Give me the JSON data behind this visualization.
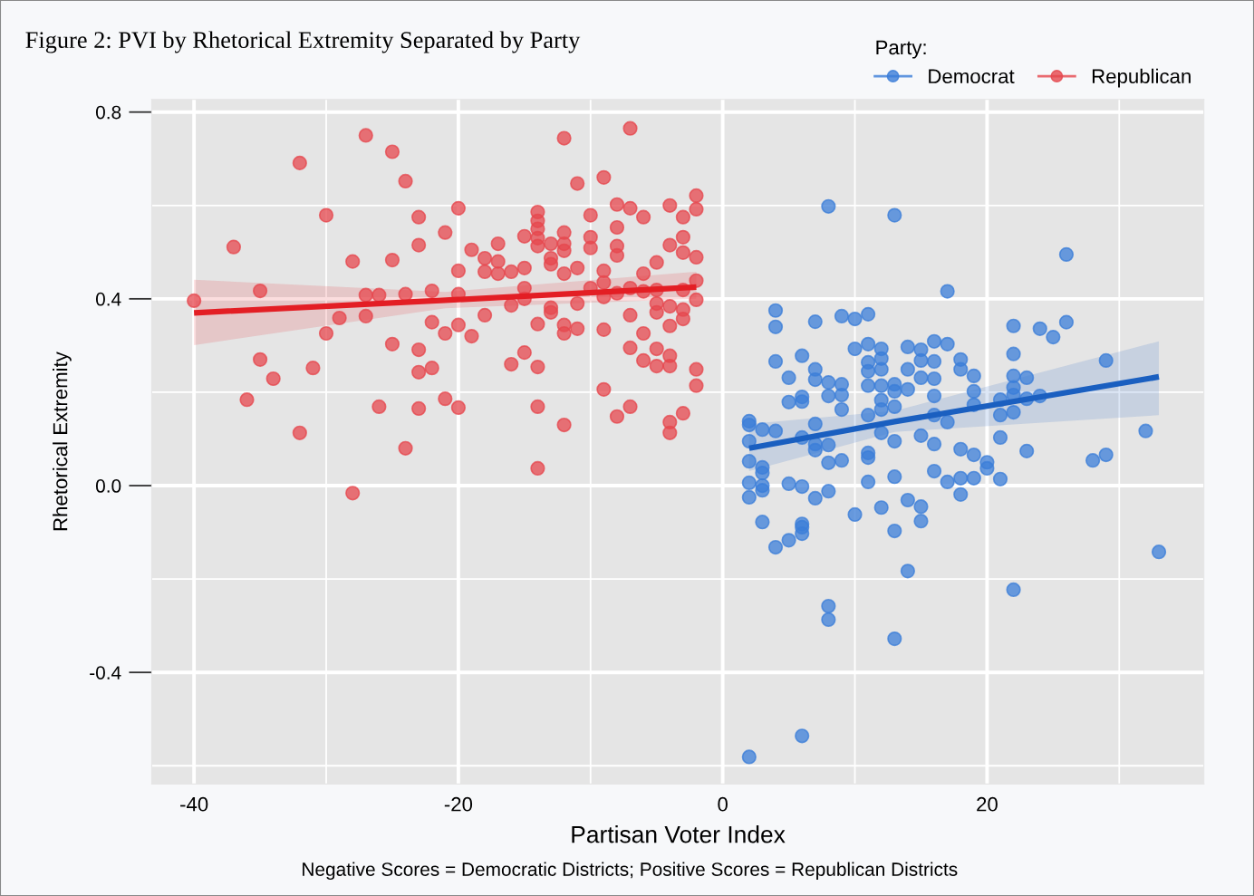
{
  "chart_data": {
    "type": "scatter",
    "title": "Figure 2: PVI by Rhetorical Extremity Separated by Party",
    "xlabel": "Partisan Voter Index",
    "ylabel": "Rhetorical Extremity",
    "legend_title": "Party:",
    "annotations": [
      "Negative Scores = Democratic Districts; Positive Scores = Republican Districts"
    ],
    "xlim": [
      -43.2,
      36.4
    ],
    "ylim": [
      -0.639,
      0.827
    ],
    "xticks": [
      -40,
      -20,
      0,
      20
    ],
    "yticks": [
      0.8,
      0.4,
      {
        "value": 0,
        "label": "0.0"
      },
      -0.4
    ],
    "grid": true,
    "legend": "top right",
    "series": [
      {
        "name": "Democrat",
        "color": "#3b7dd8",
        "marker": "circle",
        "x": [
          2,
          2,
          2,
          2,
          2,
          2,
          3,
          3,
          3,
          3,
          3,
          3,
          4,
          4,
          4,
          4,
          4,
          5,
          5,
          5,
          5,
          6,
          6,
          6,
          6,
          6,
          6,
          6,
          6,
          6,
          7,
          7,
          7,
          7,
          7,
          7,
          7,
          8,
          8,
          8,
          8,
          8,
          8,
          8,
          8,
          9,
          9,
          9,
          9,
          9,
          10,
          10,
          10,
          11,
          11,
          11,
          11,
          11,
          11,
          11,
          11,
          11,
          12,
          12,
          12,
          12,
          12,
          12,
          12,
          12,
          13,
          13,
          13,
          13,
          13,
          13,
          13,
          13,
          14,
          14,
          14,
          14,
          14,
          15,
          15,
          15,
          15,
          15,
          15,
          16,
          16,
          16,
          16,
          16,
          16,
          16,
          17,
          17,
          17,
          17,
          18,
          18,
          18,
          18,
          18,
          19,
          19,
          19,
          19,
          19,
          20,
          20,
          21,
          21,
          21,
          21,
          22,
          22,
          22,
          22,
          22,
          22,
          22,
          23,
          23,
          23,
          24,
          24,
          25,
          26,
          26,
          28,
          29,
          29,
          32,
          33,
          2
        ],
        "values": [
          0.138,
          0.13,
          0.095,
          0.052,
          0.006,
          -0.025,
          0.12,
          0.039,
          0.027,
          0.0,
          -0.01,
          -0.078,
          0.375,
          0.34,
          0.266,
          0.117,
          -0.132,
          0.231,
          0.179,
          0.004,
          -0.117,
          0.278,
          0.19,
          0.18,
          0.103,
          -0.002,
          -0.082,
          -0.089,
          -0.103,
          -0.536,
          0.351,
          0.249,
          0.227,
          0.132,
          0.089,
          0.076,
          -0.027,
          0.598,
          0.221,
          0.192,
          0.087,
          0.049,
          -0.012,
          -0.258,
          -0.287,
          0.363,
          0.217,
          0.194,
          0.163,
          0.054,
          0.357,
          0.293,
          -0.062,
          0.367,
          0.303,
          0.264,
          0.245,
          0.214,
          0.151,
          0.07,
          0.06,
          0.008,
          0.293,
          0.272,
          0.249,
          0.214,
          0.183,
          0.163,
          0.113,
          -0.047,
          0.579,
          0.217,
          0.202,
          0.169,
          0.095,
          0.019,
          -0.097,
          -0.328,
          0.297,
          0.249,
          0.206,
          -0.031,
          -0.183,
          0.291,
          0.268,
          0.231,
          0.107,
          -0.045,
          -0.076,
          0.309,
          0.266,
          0.229,
          0.192,
          0.151,
          0.089,
          0.031,
          0.416,
          0.303,
          0.136,
          0.008,
          0.27,
          0.249,
          0.078,
          0.016,
          -0.019,
          0.235,
          0.202,
          0.173,
          0.066,
          0.016,
          0.05,
          0.037,
          0.184,
          0.151,
          0.103,
          0.014,
          0.342,
          0.282,
          0.235,
          0.21,
          0.194,
          0.157,
          -0.223,
          0.231,
          0.186,
          0.074,
          0.336,
          0.192,
          0.318,
          0.495,
          0.35,
          0.054,
          0.268,
          0.066,
          0.117,
          -0.142,
          -0.581
        ]
      },
      {
        "name": "Republican",
        "color": "#e5474d",
        "marker": "circle",
        "x": [
          -40,
          -37,
          -35,
          -35,
          -36,
          -34,
          -32,
          -32,
          -31,
          -30,
          -30,
          -29,
          -28,
          -28,
          -27,
          -27,
          -27,
          -26,
          -26,
          -25,
          -25,
          -25,
          -24,
          -24,
          -24,
          -23,
          -23,
          -23,
          -23,
          -23,
          -22,
          -22,
          -22,
          -21,
          -21,
          -21,
          -20,
          -20,
          -20,
          -20,
          -20,
          -19,
          -19,
          -18,
          -18,
          -18,
          -17,
          -17,
          -17,
          -16,
          -16,
          -16,
          -15,
          -15,
          -15,
          -15,
          -15,
          -14,
          -14,
          -14,
          -14,
          -14,
          -14,
          -14,
          -14,
          -14,
          -13,
          -13,
          -13,
          -13,
          -13,
          -12,
          -12,
          -12,
          -12,
          -12,
          -12,
          -12,
          -12,
          -11,
          -11,
          -11,
          -11,
          -10,
          -10,
          -10,
          -10,
          -9,
          -9,
          -9,
          -9,
          -9,
          -9,
          -8,
          -8,
          -8,
          -8,
          -8,
          -8,
          -7,
          -7,
          -7,
          -7,
          -7,
          -7,
          -6,
          -6,
          -6,
          -6,
          -6,
          -5,
          -5,
          -5,
          -5,
          -5,
          -5,
          -4,
          -4,
          -4,
          -4,
          -4,
          -4,
          -4,
          -4,
          -3,
          -3,
          -3,
          -3,
          -3,
          -3,
          -3,
          -2,
          -2,
          -2,
          -2,
          -2,
          -2,
          -2
        ],
        "values": [
          0.396,
          0.511,
          0.417,
          0.27,
          0.184,
          0.229,
          0.691,
          0.113,
          0.252,
          0.579,
          0.326,
          0.359,
          0.48,
          -0.016,
          0.75,
          0.408,
          0.363,
          0.408,
          0.169,
          0.715,
          0.483,
          0.303,
          0.652,
          0.41,
          0.08,
          0.575,
          0.515,
          0.291,
          0.243,
          0.165,
          0.417,
          0.35,
          0.252,
          0.542,
          0.326,
          0.186,
          0.594,
          0.46,
          0.41,
          0.344,
          0.167,
          0.505,
          0.32,
          0.487,
          0.458,
          0.365,
          0.518,
          0.48,
          0.454,
          0.458,
          0.386,
          0.26,
          0.534,
          0.466,
          0.423,
          0.4,
          0.285,
          0.586,
          0.567,
          0.55,
          0.53,
          0.513,
          0.346,
          0.254,
          0.169,
          0.037,
          0.518,
          0.487,
          0.474,
          0.381,
          0.371,
          0.744,
          0.542,
          0.518,
          0.503,
          0.454,
          0.344,
          0.326,
          0.13,
          0.647,
          0.466,
          0.39,
          0.336,
          0.579,
          0.532,
          0.509,
          0.423,
          0.66,
          0.46,
          0.435,
          0.404,
          0.334,
          0.206,
          0.602,
          0.553,
          0.513,
          0.493,
          0.412,
          0.148,
          0.765,
          0.594,
          0.423,
          0.365,
          0.295,
          0.169,
          0.575,
          0.454,
          0.416,
          0.326,
          0.268,
          0.478,
          0.419,
          0.39,
          0.371,
          0.293,
          0.256,
          0.6,
          0.515,
          0.384,
          0.342,
          0.278,
          0.256,
          0.136,
          0.113,
          0.575,
          0.532,
          0.499,
          0.419,
          0.377,
          0.357,
          0.155,
          0.621,
          0.592,
          0.489,
          0.439,
          0.398,
          0.249,
          0.214
        ]
      },
      {
        "type": "line",
        "marker": "none",
        "color": "#1a5fc0",
        "x": [
          2,
          13,
          33
        ],
        "values": [
          0.08,
          0.137,
          0.233
        ],
        "lower": [
          0.031,
          0.115,
          0.151
        ],
        "upper": [
          0.132,
          0.16,
          0.309
        ]
      },
      {
        "type": "line",
        "marker": "none",
        "color": "#e31e24",
        "x": [
          -40,
          -21,
          -2
        ],
        "values": [
          0.37,
          0.397,
          0.425
        ],
        "lower": [
          0.301,
          0.38,
          0.4
        ],
        "upper": [
          0.441,
          0.415,
          0.458
        ]
      }
    ]
  }
}
